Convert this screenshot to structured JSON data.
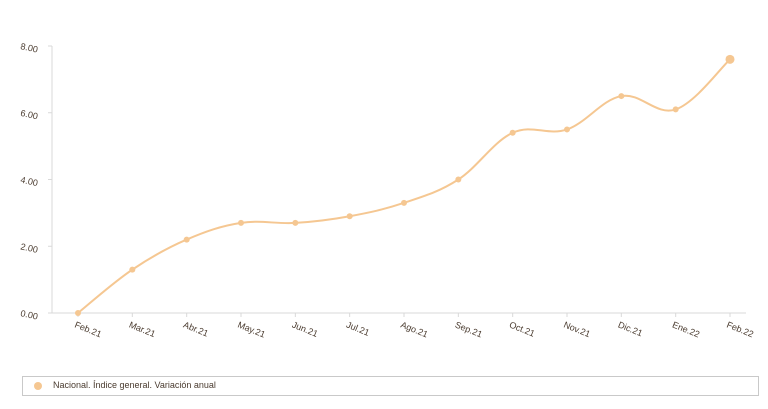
{
  "chart_data": {
    "type": "line",
    "categories": [
      "Feb.21",
      "Mar.21",
      "Abr.21",
      "May.21",
      "Jun.21",
      "Jul.21",
      "Ago.21",
      "Sep.21",
      "Oct.21",
      "Nov.21",
      "Dic.21",
      "Ene.22",
      "Feb.22"
    ],
    "series": [
      {
        "name": "Nacional. Índice general. Variación anual",
        "values": [
          0.0,
          1.3,
          2.2,
          2.7,
          2.7,
          2.9,
          3.3,
          4.0,
          5.4,
          5.5,
          6.5,
          6.1,
          7.6
        ],
        "color": "#f5c792"
      }
    ],
    "y_ticks": [
      "0.00",
      "2.00",
      "4.00",
      "6.00",
      "8.00"
    ],
    "ylim": [
      0,
      8
    ],
    "grid": false,
    "legend_position": "bottom",
    "axis_color": "#d9d9d9",
    "text_color": "#4a3b2f"
  }
}
